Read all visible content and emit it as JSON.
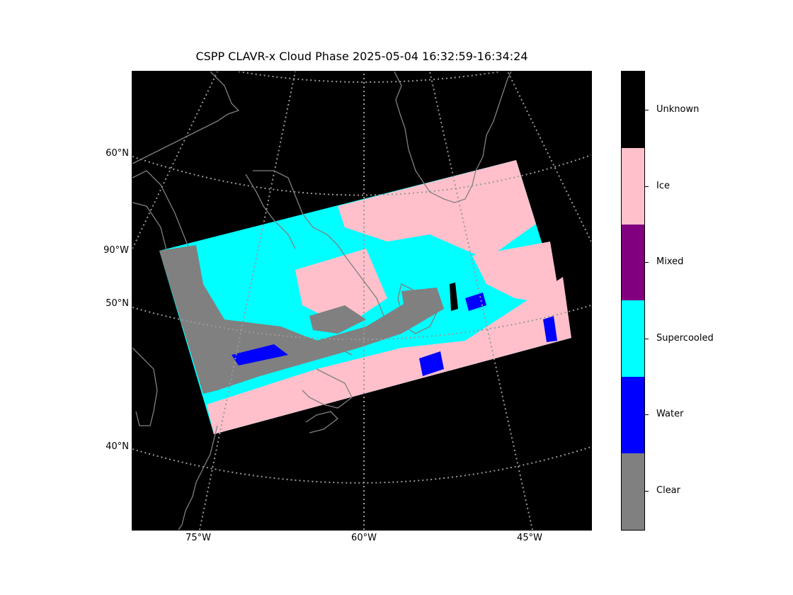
{
  "title": "CSPP CLAVR-x Cloud Phase 2025-05-04 16:32:59-16:34:24",
  "map": {
    "background": "#000000",
    "coastline_color": "#808080",
    "gridline_color": "#9a9a9a",
    "lat_labels": [
      "60°N",
      "90°W",
      "50°N",
      "40°N"
    ],
    "lon_labels": [
      "75°W",
      "60°W",
      "45°W"
    ]
  },
  "colorbar": {
    "categories": [
      {
        "name": "Unknown",
        "color": "#000000"
      },
      {
        "name": "Ice",
        "color": "#ffc0cb"
      },
      {
        "name": "Mixed",
        "color": "#800080"
      },
      {
        "name": "Supercooled",
        "color": "#00ffff"
      },
      {
        "name": "Water",
        "color": "#0000ff"
      },
      {
        "name": "Clear",
        "color": "#808080"
      }
    ]
  }
}
